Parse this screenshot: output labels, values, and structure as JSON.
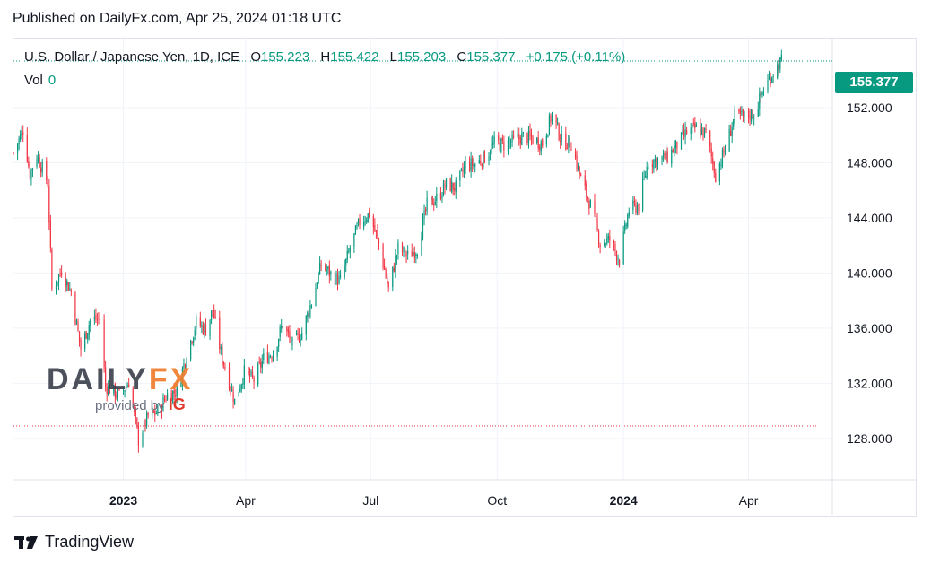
{
  "header": {
    "published": "Published on DailyFx.com, Apr 25, 2024 01:18 UTC"
  },
  "legend": {
    "symbol": "U.S. Dollar / Japanese Yen, 1D, ICE",
    "o_label": "O",
    "o": "155.223",
    "h_label": "H",
    "h": "155.422",
    "l_label": "L",
    "l": "155.203",
    "c_label": "C",
    "c": "155.377",
    "change": "+0.175 (+0.11%)",
    "vol_label": "Vol",
    "vol": "0"
  },
  "last_price": "155.377",
  "watermark": {
    "main_a": "DAILY",
    "main_b": "FX",
    "sub": "provided by",
    "sub_brand": "IG"
  },
  "brand": "TradingView",
  "colors": {
    "up": "#089981",
    "down": "#f23645",
    "grid": "#f0f3fa",
    "axis_text": "#131722"
  },
  "chart_data": {
    "type": "candlestick",
    "title": "U.S. Dollar / Japanese Yen, 1D, ICE",
    "y_ticks": [
      "128.000",
      "132.000",
      "136.000",
      "140.000",
      "144.000",
      "148.000",
      "152.000"
    ],
    "x_ticks": [
      {
        "label": "2023",
        "date": "2023-01-02",
        "bold": true
      },
      {
        "label": "Apr",
        "date": "2023-04-01",
        "bold": false
      },
      {
        "label": "Jul",
        "date": "2023-07-01",
        "bold": false
      },
      {
        "label": "Oct",
        "date": "2023-10-01",
        "bold": false
      },
      {
        "label": "2024",
        "date": "2024-01-01",
        "bold": true
      },
      {
        "label": "Apr",
        "date": "2024-04-01",
        "bold": false
      }
    ],
    "ylim": [
      125,
      157
    ],
    "xlim": [
      "2022-10-14",
      "2024-06-01"
    ],
    "reference_lines": [
      {
        "value": 155.377,
        "color": "#089981"
      },
      {
        "value": 128.9,
        "color": "#f23645"
      }
    ],
    "series": [
      {
        "date": "2022-10-14",
        "close": 148.7
      },
      {
        "date": "2022-10-21",
        "close": 150.4
      },
      {
        "date": "2022-10-26",
        "close": 147.2
      },
      {
        "date": "2022-10-31",
        "close": 148.6
      },
      {
        "date": "2022-11-08",
        "close": 146.5
      },
      {
        "date": "2022-11-11",
        "close": 138.8
      },
      {
        "date": "2022-11-18",
        "close": 140.2
      },
      {
        "date": "2022-11-25",
        "close": 138.6
      },
      {
        "date": "2022-12-02",
        "close": 134.5
      },
      {
        "date": "2022-12-09",
        "close": 136.6
      },
      {
        "date": "2022-12-16",
        "close": 136.7
      },
      {
        "date": "2022-12-20",
        "close": 131.8
      },
      {
        "date": "2022-12-30",
        "close": 131.1
      },
      {
        "date": "2023-01-06",
        "close": 132.1
      },
      {
        "date": "2023-01-13",
        "close": 127.9
      },
      {
        "date": "2023-01-20",
        "close": 129.6
      },
      {
        "date": "2023-01-27",
        "close": 129.9
      },
      {
        "date": "2023-02-03",
        "close": 131.2
      },
      {
        "date": "2023-02-10",
        "close": 131.4
      },
      {
        "date": "2023-02-17",
        "close": 134.1
      },
      {
        "date": "2023-02-24",
        "close": 136.4
      },
      {
        "date": "2023-03-03",
        "close": 135.9
      },
      {
        "date": "2023-03-08",
        "close": 137.3
      },
      {
        "date": "2023-03-14",
        "close": 134.2
      },
      {
        "date": "2023-03-24",
        "close": 130.7
      },
      {
        "date": "2023-03-31",
        "close": 132.8
      },
      {
        "date": "2023-04-07",
        "close": 132.2
      },
      {
        "date": "2023-04-14",
        "close": 133.8
      },
      {
        "date": "2023-04-21",
        "close": 134.2
      },
      {
        "date": "2023-04-28",
        "close": 136.3
      },
      {
        "date": "2023-05-05",
        "close": 134.8
      },
      {
        "date": "2023-05-12",
        "close": 135.7
      },
      {
        "date": "2023-05-19",
        "close": 137.9
      },
      {
        "date": "2023-05-26",
        "close": 140.6
      },
      {
        "date": "2023-06-02",
        "close": 139.9
      },
      {
        "date": "2023-06-09",
        "close": 139.4
      },
      {
        "date": "2023-06-16",
        "close": 141.8
      },
      {
        "date": "2023-06-23",
        "close": 143.7
      },
      {
        "date": "2023-06-30",
        "close": 144.3
      },
      {
        "date": "2023-07-07",
        "close": 142.1
      },
      {
        "date": "2023-07-14",
        "close": 138.8
      },
      {
        "date": "2023-07-21",
        "close": 141.8
      },
      {
        "date": "2023-07-28",
        "close": 141.2
      },
      {
        "date": "2023-08-04",
        "close": 141.8
      },
      {
        "date": "2023-08-11",
        "close": 144.9
      },
      {
        "date": "2023-08-18",
        "close": 145.4
      },
      {
        "date": "2023-08-25",
        "close": 146.4
      },
      {
        "date": "2023-09-01",
        "close": 146.2
      },
      {
        "date": "2023-09-08",
        "close": 147.8
      },
      {
        "date": "2023-09-15",
        "close": 147.9
      },
      {
        "date": "2023-09-22",
        "close": 148.4
      },
      {
        "date": "2023-09-29",
        "close": 149.4
      },
      {
        "date": "2023-10-06",
        "close": 149.3
      },
      {
        "date": "2023-10-13",
        "close": 149.6
      },
      {
        "date": "2023-10-20",
        "close": 149.9
      },
      {
        "date": "2023-10-27",
        "close": 149.7
      },
      {
        "date": "2023-11-03",
        "close": 149.4
      },
      {
        "date": "2023-11-10",
        "close": 151.5
      },
      {
        "date": "2023-11-17",
        "close": 149.6
      },
      {
        "date": "2023-11-24",
        "close": 149.4
      },
      {
        "date": "2023-12-01",
        "close": 146.8
      },
      {
        "date": "2023-12-08",
        "close": 144.9
      },
      {
        "date": "2023-12-15",
        "close": 142.2
      },
      {
        "date": "2023-12-22",
        "close": 142.4
      },
      {
        "date": "2023-12-29",
        "close": 141.0
      },
      {
        "date": "2024-01-05",
        "close": 144.6
      },
      {
        "date": "2024-01-12",
        "close": 144.9
      },
      {
        "date": "2024-01-19",
        "close": 148.1
      },
      {
        "date": "2024-01-26",
        "close": 148.2
      },
      {
        "date": "2024-02-02",
        "close": 148.4
      },
      {
        "date": "2024-02-09",
        "close": 149.3
      },
      {
        "date": "2024-02-16",
        "close": 150.2
      },
      {
        "date": "2024-02-23",
        "close": 150.5
      },
      {
        "date": "2024-03-01",
        "close": 150.1
      },
      {
        "date": "2024-03-08",
        "close": 147.1
      },
      {
        "date": "2024-03-15",
        "close": 149.0
      },
      {
        "date": "2024-03-22",
        "close": 151.4
      },
      {
        "date": "2024-03-29",
        "close": 151.3
      },
      {
        "date": "2024-04-05",
        "close": 151.6
      },
      {
        "date": "2024-04-12",
        "close": 153.3
      },
      {
        "date": "2024-04-19",
        "close": 154.6
      },
      {
        "date": "2024-04-25",
        "close": 155.377
      }
    ]
  }
}
